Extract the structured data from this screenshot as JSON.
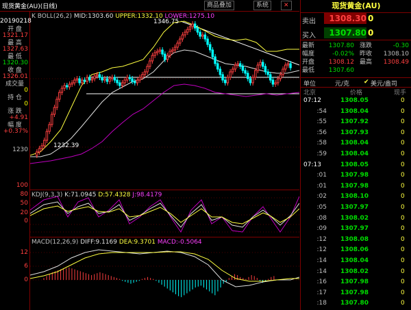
{
  "window": {
    "title": "现货黄金(AU)(日线)"
  },
  "toolbar": {
    "btn1": "商品叠加",
    "btn2": "系统",
    "btn3": "✕"
  },
  "left_panel": {
    "date": "20190218",
    "items": [
      {
        "label": "开 盘",
        "value": "1321.17",
        "color": "#ff4040"
      },
      {
        "label": "最 高",
        "value": "1327.63",
        "color": "#ff4040"
      },
      {
        "label": "最 低",
        "value": "1320.30",
        "color": "#00e000"
      },
      {
        "label": "收 盘",
        "value": "1326.01",
        "color": "#ff4040"
      },
      {
        "label": "成交量",
        "value": "0",
        "color": "#ffff00"
      },
      {
        "label": "持 仓",
        "value": "0",
        "color": "#ffff00"
      },
      {
        "label": "涨 跌",
        "value": "+4.91",
        "color": "#ff4040"
      },
      {
        "label": "幅 度",
        "value": "+0.37%",
        "color": "#ff4040"
      }
    ]
  },
  "price_chart": {
    "indicator": "K  BOLL(26,2)",
    "mid": "MID:1303.60",
    "upper": "UPPER:1332.10",
    "lower": "LOWER:1275.10",
    "y_tick": "1230",
    "high_label": "1346.75",
    "low_label": "1232.39"
  },
  "kdj": {
    "name": "KDJ(9,3,3)",
    "k": "K:71.0945",
    "d": "D:57.4328",
    "j": "J:98.4179",
    "ticks": [
      "100",
      "80",
      "50",
      "20",
      "0"
    ]
  },
  "macd": {
    "name": "MACD(12,26,9)",
    "diff": "DIFF:9.1169",
    "dea": "DEA:9.3701",
    "macd": "MACD:-0.5064",
    "ticks": [
      "12",
      "6",
      "0"
    ]
  },
  "right_panel": {
    "title": "现货黄金(AU)",
    "sell_label": "卖出",
    "sell_price": "1308.30",
    "sell_vol": "0",
    "buy_label": "买入",
    "buy_price": "1307.80",
    "buy_vol": "0",
    "stats": [
      {
        "l1": "最新",
        "v1": "1307.80",
        "c1": "#00e000",
        "l2": "涨跌",
        "v2": "-0.30",
        "c2": "#00e000"
      },
      {
        "l1": "幅度",
        "v1": "-0.02%",
        "c1": "#00e000",
        "l2": "昨收",
        "v2": "1308.10",
        "c2": "#c0c0c0"
      },
      {
        "l1": "开盘",
        "v1": "1308.12",
        "c1": "#ff4040",
        "l2": "最高",
        "v2": "1308.49",
        "c2": "#ff4040"
      },
      {
        "l1": "最低",
        "v1": "1307.60",
        "c1": "#00e000",
        "l2": "",
        "v2": "",
        "c2": "#c0c0c0"
      }
    ],
    "unit_label": "单位",
    "unit_value": "元/克",
    "currency": "美元/盎司",
    "col_time": "北京",
    "col_price": "价格",
    "col_vol": "现手",
    "ticks": [
      {
        "t": "07:12",
        "p": "1308.05",
        "v": "0",
        "hl": true
      },
      {
        "t": ":54",
        "p": "1308.04",
        "v": "0"
      },
      {
        "t": ":55",
        "p": "1307.92",
        "v": "0"
      },
      {
        "t": ":56",
        "p": "1307.93",
        "v": "0"
      },
      {
        "t": ":58",
        "p": "1308.04",
        "v": "0"
      },
      {
        "t": ":59",
        "p": "1308.04",
        "v": "0"
      },
      {
        "t": "07:13",
        "p": "1308.05",
        "v": "0",
        "hl": true
      },
      {
        "t": ":01",
        "p": "1307.98",
        "v": "0"
      },
      {
        "t": ":01",
        "p": "1307.98",
        "v": "0"
      },
      {
        "t": ":02",
        "p": "1308.10",
        "v": "0"
      },
      {
        "t": ":05",
        "p": "1307.97",
        "v": "0"
      },
      {
        "t": ":08",
        "p": "1308.02",
        "v": "0"
      },
      {
        "t": ":09",
        "p": "1307.97",
        "v": "0"
      },
      {
        "t": ":12",
        "p": "1308.08",
        "v": "0"
      },
      {
        "t": ":12",
        "p": "1308.06",
        "v": "0"
      },
      {
        "t": ":14",
        "p": "1308.04",
        "v": "0"
      },
      {
        "t": ":14",
        "p": "1308.02",
        "v": "0"
      },
      {
        "t": ":16",
        "p": "1307.98",
        "v": "0"
      },
      {
        "t": ":17",
        "p": "1307.98",
        "v": "0"
      },
      {
        "t": ":18",
        "p": "1307.80",
        "v": "0"
      }
    ]
  }
}
